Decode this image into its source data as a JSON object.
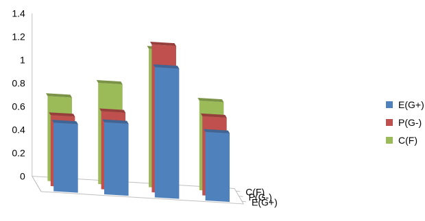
{
  "chart_data": {
    "type": "bar",
    "subtype": "3d-column",
    "categories": [
      "",
      "",
      "",
      ""
    ],
    "depth_categories": [
      "E(G+)",
      "P(G-)",
      "C(F)"
    ],
    "series": [
      {
        "name": "E(G+)",
        "color": "#4F81BD",
        "values": [
          0.59,
          0.62,
          1.12,
          0.59
        ]
      },
      {
        "name": "P(G-)",
        "color": "#C0504D",
        "values": [
          0.61,
          0.67,
          1.27,
          0.68
        ]
      },
      {
        "name": "C(F)",
        "color": "#9BBB59",
        "values": [
          0.73,
          0.87,
          1.19,
          0.77
        ]
      }
    ],
    "yticks": [
      "0",
      "0.2",
      "0.4",
      "0.6",
      "0.8",
      "1",
      "1.2",
      "1.4"
    ],
    "ylim": [
      0,
      1.4
    ],
    "legend_position": "right"
  },
  "legend": [
    {
      "label": "E(G+)",
      "color": "#4F81BD"
    },
    {
      "label": "P(G-)",
      "color": "#C0504D"
    },
    {
      "label": "C(F)",
      "color": "#9BBB59"
    }
  ]
}
